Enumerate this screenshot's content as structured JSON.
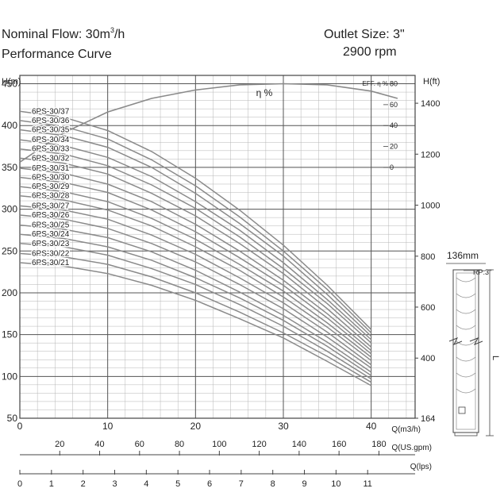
{
  "header": {
    "flow_label": "Nominal Flow: 30m",
    "flow_sup": "3",
    "flow_unit": "/h",
    "subtitle": "Performance Curve",
    "outlet": "Outlet Size: 3\"",
    "speed": "2900 rpm"
  },
  "pump_drawing": {
    "width_label": "136mm",
    "rp_label": "RP:3\"",
    "length_label": "L"
  },
  "chart_data": {
    "type": "line",
    "x_label": "Q(m3/h)",
    "xlim": [
      0,
      45
    ],
    "x_ticks": [
      0,
      10,
      20,
      30,
      40
    ],
    "y_left_label": "H(m)",
    "ylim": [
      50,
      460
    ],
    "y_left_ticks": [
      50,
      100,
      150,
      200,
      250,
      300,
      350,
      400,
      450
    ],
    "y_right_label": "H(ft)",
    "y_right_ticks": [
      {
        "label": "164",
        "value": 50
      },
      {
        "label": "400",
        "value": 121.9
      },
      {
        "label": "600",
        "value": 182.9
      },
      {
        "label": "800",
        "value": 243.8
      },
      {
        "label": "1000",
        "value": 304.8
      },
      {
        "label": "1200",
        "value": 365.8
      },
      {
        "label": "1400",
        "value": 426.7
      }
    ],
    "efficiency": {
      "label": "η %",
      "axis_label": "EFF. η %",
      "ticks": [
        {
          "label": "80",
          "value": 450
        },
        {
          "label": "60",
          "value": 425
        },
        {
          "label": "40",
          "value": 400
        },
        {
          "label": "20",
          "value": 375
        },
        {
          "label": "0",
          "value": 350
        }
      ],
      "x": [
        0,
        5,
        10,
        15,
        20,
        25,
        30,
        35,
        40,
        43
      ],
      "eta": [
        5,
        33,
        53,
        66,
        74,
        79,
        80,
        79,
        73,
        66
      ]
    },
    "secondary_axes": [
      {
        "label": "Q(US.gpm)",
        "factor": 4.403,
        "ticks": [
          20,
          40,
          60,
          80,
          100,
          120,
          140,
          160,
          180
        ]
      },
      {
        "label": "Q(lps)",
        "factor": 0.2778,
        "ticks": [
          0,
          1,
          2,
          3,
          4,
          5,
          6,
          7,
          8,
          9,
          10,
          11
        ]
      }
    ],
    "curve_x": [
      0,
      5,
      10,
      15,
      20,
      25,
      30,
      35,
      40
    ],
    "curve_shape": [
      1.0,
      0.983,
      0.946,
      0.885,
      0.808,
      0.717,
      0.617,
      0.502,
      0.375
    ],
    "series": [
      {
        "name": "6PS-30/37",
        "values": [
          417,
          410,
          394,
          369,
          337,
          299,
          257,
          209,
          156
        ]
      },
      {
        "name": "6PS-30/36",
        "values": [
          406,
          399,
          384,
          359,
          328,
          291,
          250,
          204,
          152
        ]
      },
      {
        "name": "6PS-30/35",
        "values": [
          395,
          388,
          374,
          350,
          319,
          283,
          244,
          198,
          148
        ]
      },
      {
        "name": "6PS-30/34",
        "values": [
          383,
          376,
          362,
          339,
          309,
          275,
          236,
          192,
          144
        ]
      },
      {
        "name": "6PS-30/33",
        "values": [
          372,
          366,
          352,
          329,
          301,
          267,
          229,
          187,
          140
        ]
      },
      {
        "name": "6PS-30/32",
        "values": [
          361,
          355,
          342,
          319,
          292,
          259,
          223,
          181,
          135
        ]
      },
      {
        "name": "6PS-30/31",
        "values": [
          349,
          343,
          330,
          309,
          282,
          250,
          215,
          175,
          131
        ]
      },
      {
        "name": "6PS-30/30",
        "values": [
          338,
          332,
          320,
          299,
          273,
          242,
          209,
          170,
          127
        ]
      },
      {
        "name": "6PS-30/29",
        "values": [
          327,
          321,
          309,
          289,
          264,
          234,
          202,
          164,
          123
        ]
      },
      {
        "name": "6PS-30/28",
        "values": [
          316,
          311,
          299,
          280,
          255,
          227,
          195,
          159,
          119
        ]
      },
      {
        "name": "6PS-30/27",
        "values": [
          304,
          299,
          288,
          269,
          246,
          218,
          188,
          153,
          114
        ]
      },
      {
        "name": "6PS-30/26",
        "values": [
          293,
          288,
          277,
          259,
          237,
          210,
          181,
          147,
          110
        ]
      },
      {
        "name": "6PS-30/25",
        "values": [
          281,
          276,
          266,
          249,
          227,
          201,
          173,
          141,
          105
        ]
      },
      {
        "name": "6PS-30/24",
        "values": [
          270,
          265,
          255,
          239,
          218,
          194,
          167,
          136,
          101
        ]
      },
      {
        "name": "6PS-30/23",
        "values": [
          259,
          255,
          245,
          229,
          210,
          186,
          160,
          130,
          97
        ]
      },
      {
        "name": "6PS-30/22",
        "values": [
          247,
          243,
          234,
          219,
          200,
          177,
          152,
          124,
          93
        ]
      },
      {
        "name": "6PS-30/21",
        "values": [
          236,
          232,
          223,
          209,
          191,
          169,
          146,
          118,
          89
        ]
      }
    ],
    "grid": true
  },
  "colors": {
    "curve": "#8a8a8a",
    "grid_major": "#555555",
    "grid_minor": "#b5b5b5",
    "text": "#222222"
  }
}
